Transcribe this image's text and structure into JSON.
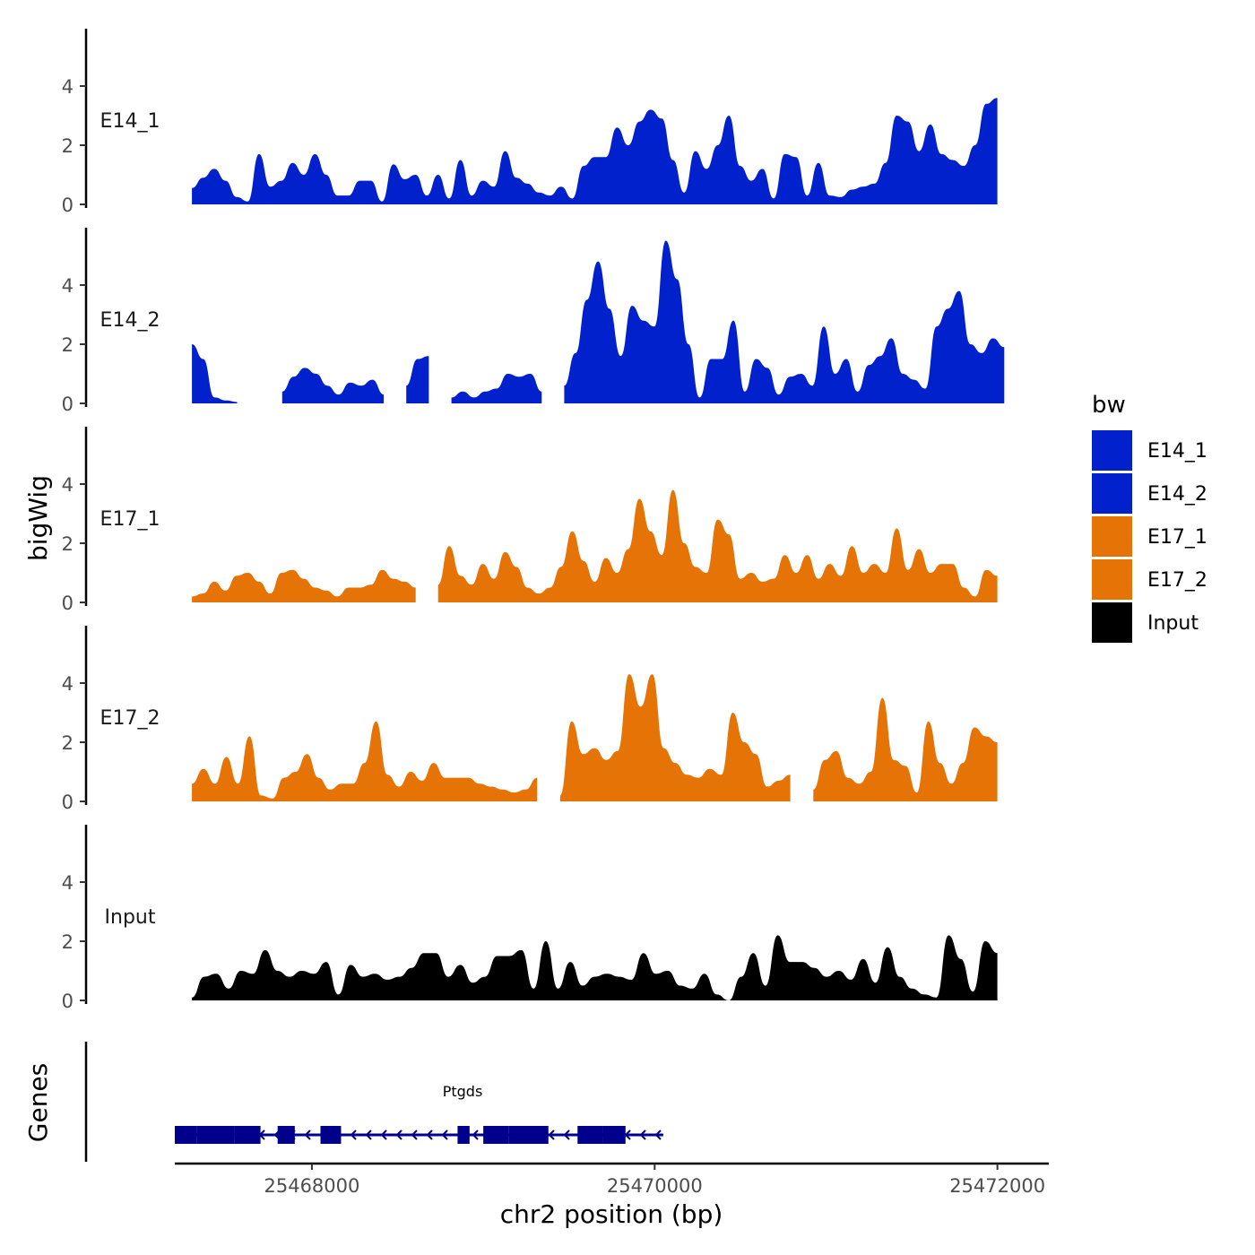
{
  "chart_data": {
    "type": "area",
    "ylabel": "bigWig",
    "xlabel": "chr2 position (bp)",
    "xlim": [
      25467200,
      25472300
    ],
    "ylim": [
      0,
      6
    ],
    "y_ticks": [
      0,
      2,
      4
    ],
    "y_tick_labels": [
      "0",
      "2",
      "4"
    ],
    "x_ticks": [
      25468000,
      25470000,
      25472000
    ],
    "x_tick_labels": [
      "25468000",
      "25470000",
      "25472000"
    ],
    "legend": {
      "title": "bw",
      "position": "right",
      "entries": [
        {
          "name": "E14_1",
          "color": "#0021CC"
        },
        {
          "name": "E14_2",
          "color": "#0021CC"
        },
        {
          "name": "E17_1",
          "color": "#E67305"
        },
        {
          "name": "E17_2",
          "color": "#E67305"
        },
        {
          "name": "Input",
          "color": "#000000"
        }
      ]
    },
    "tracks": [
      {
        "name": "E14_1",
        "color": "#0021CC",
        "start": 25467300,
        "end": 25472000,
        "values": [
          0.55,
          0.9,
          1.2,
          0.8,
          0.25,
          0.1,
          1.7,
          0.6,
          0.8,
          1.4,
          1.0,
          1.7,
          1.0,
          0.3,
          0.3,
          0.8,
          0.8,
          0.1,
          1.35,
          0.85,
          1.0,
          0.3,
          1.0,
          0.2,
          1.5,
          0.3,
          0.8,
          0.6,
          1.8,
          0.9,
          0.7,
          0.4,
          0.3,
          0.6,
          0.2,
          1.3,
          1.6,
          1.6,
          2.6,
          2.0,
          2.8,
          3.2,
          2.9,
          1.5,
          0.4,
          1.8,
          1.2,
          2.0,
          3.0,
          1.3,
          0.8,
          1.2,
          0.2,
          1.7,
          1.6,
          0.3,
          1.4,
          0.3,
          0.25,
          0.5,
          0.6,
          0.7,
          1.4,
          3.0,
          2.8,
          1.8,
          2.7,
          1.7,
          1.5,
          1.3,
          2.0,
          3.4,
          3.6
        ],
        "missing": []
      },
      {
        "name": "E14_2",
        "color": "#0021CC",
        "start": 25467300,
        "end": 25472040,
        "values": [
          2.0,
          1.5,
          0.2,
          0.1,
          0.05,
          null,
          null,
          null,
          0.4,
          0.9,
          1.2,
          1.0,
          0.6,
          0.3,
          0.7,
          0.6,
          0.8,
          0.3,
          null,
          0.6,
          1.5,
          1.6,
          null,
          0.2,
          0.4,
          0.2,
          0.4,
          0.5,
          1.0,
          0.9,
          1.0,
          0.4,
          null,
          0.6,
          1.7,
          3.5,
          4.8,
          3.2,
          1.6,
          3.3,
          2.8,
          2.6,
          5.5,
          4.2,
          2.0,
          0.2,
          1.5,
          1.5,
          2.8,
          0.4,
          1.5,
          1.2,
          0.3,
          0.9,
          1.0,
          0.6,
          2.6,
          1.0,
          1.5,
          0.4,
          1.3,
          1.6,
          2.2,
          1.0,
          0.8,
          0.5,
          2.6,
          3.2,
          3.8,
          2.0,
          1.7,
          2.2,
          1.9
        ],
        "missing": []
      },
      {
        "name": "E17_1",
        "color": "#E67305",
        "start": 25467300,
        "end": 25472000,
        "values": [
          0.2,
          0.3,
          0.7,
          0.4,
          0.9,
          1.0,
          0.7,
          0.3,
          1.0,
          1.1,
          0.8,
          0.5,
          0.4,
          0.2,
          0.5,
          0.5,
          0.6,
          1.1,
          0.8,
          0.7,
          0.5,
          null,
          0.6,
          1.9,
          0.9,
          0.6,
          1.3,
          0.8,
          1.7,
          1.2,
          0.5,
          0.3,
          0.5,
          1.2,
          2.4,
          1.4,
          0.7,
          1.5,
          1.0,
          1.8,
          3.5,
          2.4,
          1.6,
          3.8,
          2.0,
          1.2,
          1.0,
          2.8,
          2.3,
          0.8,
          1.0,
          0.7,
          0.8,
          1.6,
          1.0,
          1.6,
          0.8,
          1.3,
          0.9,
          1.9,
          1.0,
          1.3,
          1.0,
          2.5,
          1.1,
          1.8,
          1.0,
          1.3,
          1.3,
          0.5,
          0.2,
          1.1,
          0.9
        ],
        "missing": []
      },
      {
        "name": "E17_2",
        "color": "#E67305",
        "start": 25467300,
        "end": 25472000,
        "values": [
          0.6,
          1.1,
          0.6,
          1.5,
          0.6,
          2.2,
          0.2,
          0.1,
          0.8,
          1.0,
          1.6,
          0.8,
          0.4,
          0.6,
          0.6,
          1.3,
          2.7,
          0.9,
          0.5,
          1.0,
          0.7,
          1.3,
          0.8,
          0.8,
          0.8,
          0.6,
          0.5,
          0.4,
          0.3,
          0.4,
          0.8,
          null,
          0.2,
          2.7,
          1.6,
          1.8,
          1.4,
          1.7,
          4.3,
          3.2,
          4.3,
          1.8,
          1.3,
          0.9,
          0.8,
          1.1,
          0.9,
          3.0,
          2.0,
          1.6,
          0.5,
          0.7,
          0.9,
          null,
          0.4,
          1.4,
          1.7,
          0.8,
          0.6,
          1.0,
          3.5,
          1.4,
          1.2,
          0.3,
          2.7,
          1.3,
          0.6,
          1.3,
          2.5,
          2.2,
          2.0
        ],
        "missing": []
      },
      {
        "name": "Input",
        "color": "#000000",
        "start": 25467300,
        "end": 25472000,
        "values": [
          0.1,
          0.8,
          0.9,
          0.4,
          1.0,
          0.9,
          1.7,
          1.0,
          0.8,
          1.0,
          0.9,
          1.3,
          0.2,
          1.2,
          0.8,
          0.9,
          0.7,
          0.8,
          1.1,
          1.6,
          1.6,
          0.8,
          1.2,
          0.6,
          0.8,
          1.5,
          1.5,
          1.7,
          0.4,
          2.0,
          0.4,
          1.3,
          0.5,
          0.8,
          0.9,
          0.8,
          0.7,
          1.6,
          0.9,
          1.0,
          0.5,
          0.4,
          0.9,
          0.2,
          0.0,
          0.8,
          1.6,
          0.5,
          2.2,
          1.3,
          1.3,
          1.1,
          0.8,
          1.0,
          0.7,
          1.4,
          0.6,
          1.8,
          0.8,
          0.4,
          0.2,
          0.1,
          2.2,
          1.4,
          0.3,
          2.0,
          1.6
        ],
        "missing": []
      }
    ],
    "gene_track": {
      "label": "Genes",
      "gene_name": "Ptgds",
      "strand": "-",
      "start": 25467200,
      "end": 25470050,
      "exons": [
        [
          25467200,
          25467330
        ],
        [
          25467330,
          25467550
        ],
        [
          25467550,
          25467700
        ],
        [
          25467800,
          25467900
        ],
        [
          25468050,
          25468170
        ],
        [
          25468850,
          25468920
        ],
        [
          25469000,
          25469150
        ],
        [
          25469150,
          25469380
        ],
        [
          25469550,
          25469700
        ],
        [
          25469700,
          25469830
        ]
      ]
    }
  }
}
